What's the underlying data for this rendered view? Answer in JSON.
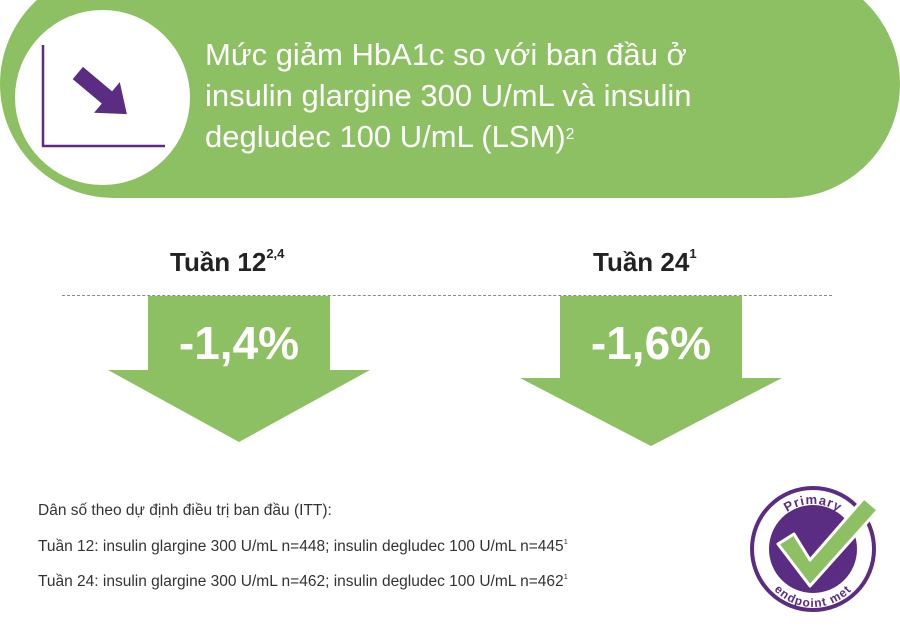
{
  "banner": {
    "title_line1": "Mức giảm HbA1c so với ban đầu ở",
    "title_line2": "insulin glargine 300 U/mL và insulin",
    "title_line3": "degludec 100 U/mL (LSM)",
    "title_sup": "2"
  },
  "weeks": [
    {
      "label": "Tuần 12",
      "sup": "2,4",
      "value": "-1,4%"
    },
    {
      "label": "Tuần 24",
      "sup": "1",
      "value": "-1,6%"
    }
  ],
  "notes": {
    "line1": "Dân số theo dự định điều trị ban đầu (ITT):",
    "line2": "Tuần 12: insulin glargine 300 U/mL n=448; insulin degludec 100 U/mL n=445",
    "line2_sup": "1",
    "line3": "Tuần 24: insulin glargine 300 U/mL n=462; insulin degludec 100 U/mL n=462",
    "line3_sup": "1"
  },
  "badge": {
    "text_top": "Primary",
    "text_bottom": "endpoint met"
  },
  "colors": {
    "green": "#8dc063",
    "purple": "#5b2d82",
    "check_green": "#8dc063"
  },
  "icons": [
    "trend-down-icon",
    "primary-endpoint-badge-icon"
  ]
}
